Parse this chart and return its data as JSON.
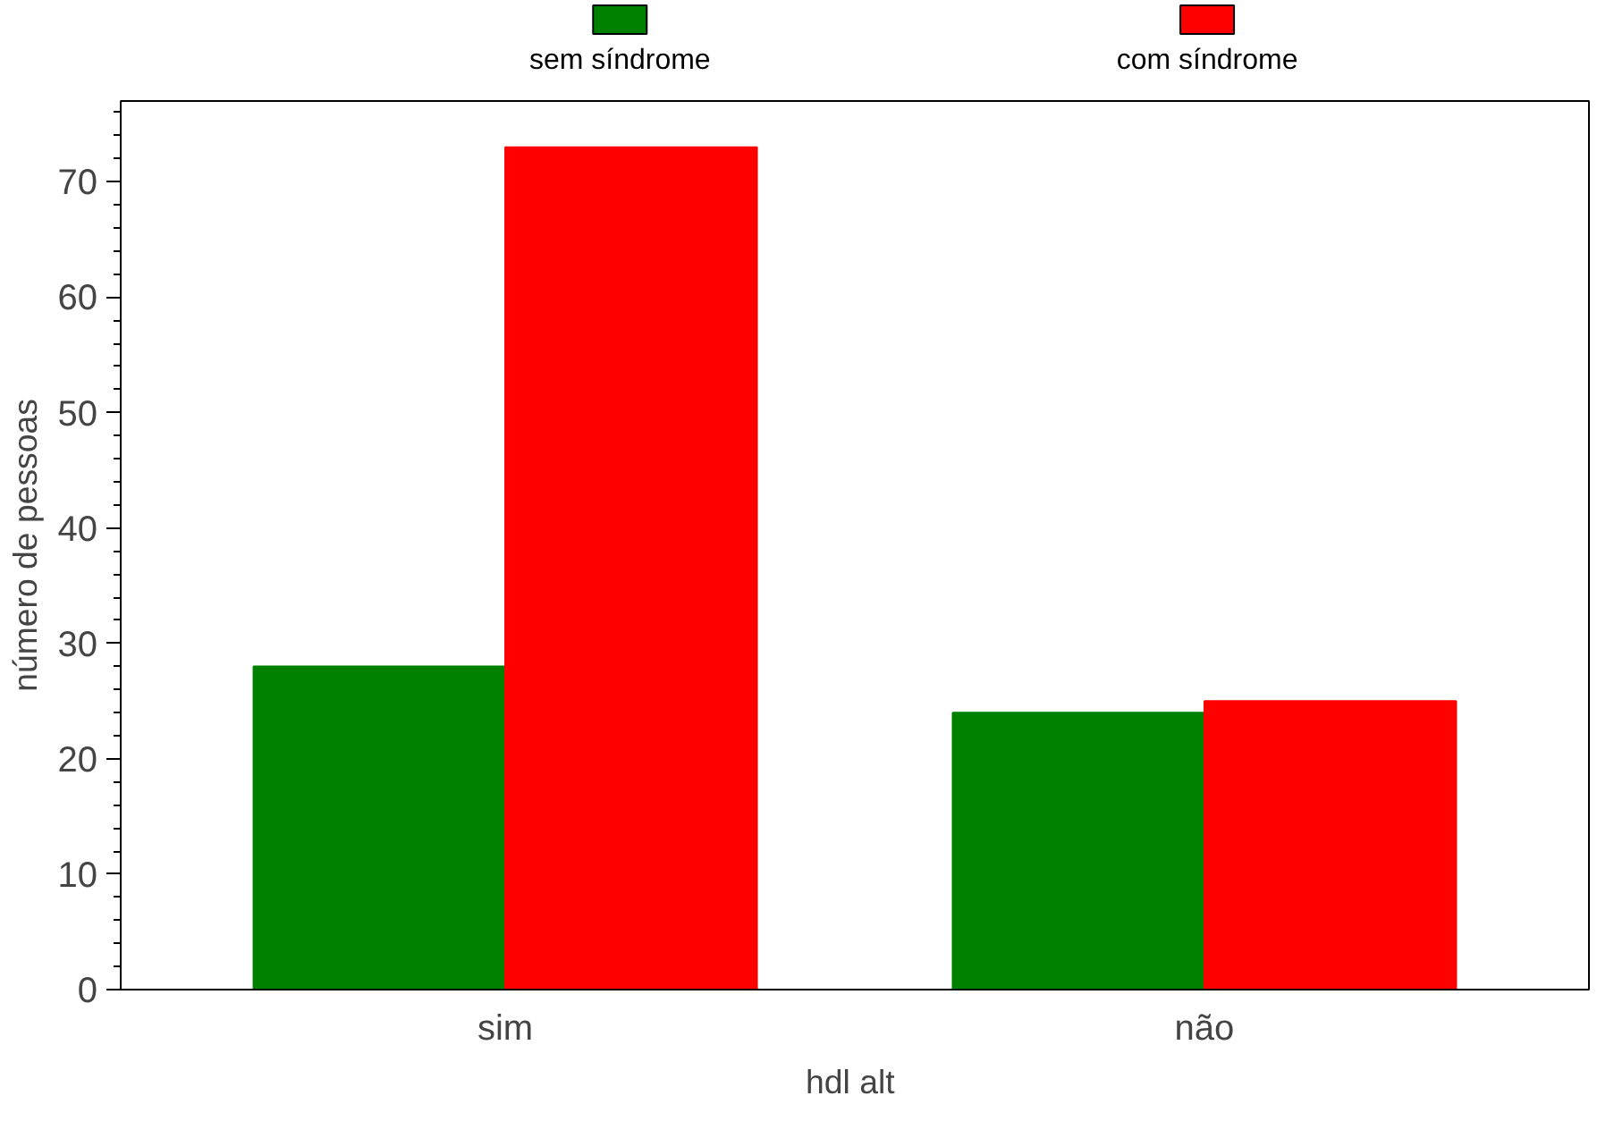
{
  "chart_data": {
    "type": "bar",
    "xlabel": "hdl  alt",
    "ylabel": "número de pessoas",
    "categories": [
      "sim",
      "não"
    ],
    "series": [
      {
        "name": "sem síndrome",
        "color": "#008000",
        "values": [
          28,
          24
        ]
      },
      {
        "name": "com síndrome",
        "color": "#ff0000",
        "values": [
          73,
          25
        ]
      }
    ],
    "ylim": [
      0,
      77
    ],
    "yticks": [
      0,
      10,
      20,
      30,
      40,
      50,
      60,
      70
    ],
    "grid": false,
    "legend": "top"
  }
}
